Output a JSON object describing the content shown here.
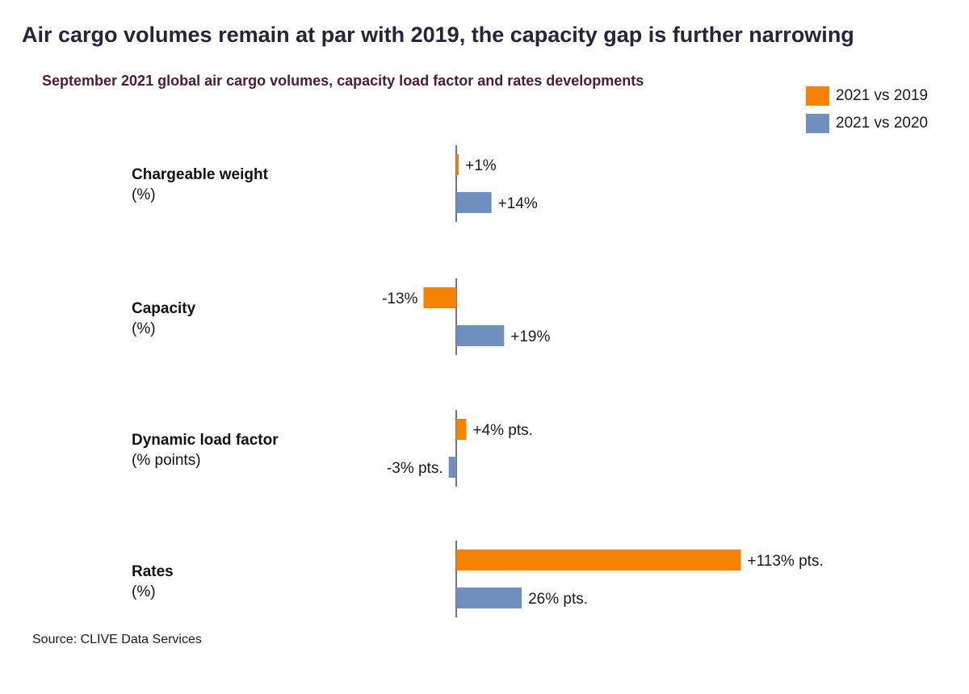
{
  "title": "Air cargo volumes remain at par with 2019, the capacity gap is further narrowing",
  "subtitle": "September 2021 global air cargo volumes, capacity load factor and rates developments",
  "legend": [
    {
      "label": "2021 vs 2019",
      "color": "#f58200"
    },
    {
      "label": "2021 vs 2020",
      "color": "#6f8fbf"
    }
  ],
  "source": "Source: CLIVE Data Services",
  "chart_data": {
    "type": "bar",
    "orientation": "horizontal",
    "title": "Air cargo volumes remain at par with 2019, the capacity gap is further narrowing",
    "subtitle": "September 2021 global air cargo volumes, capacity load factor and rates developments",
    "legend_position": "top-right",
    "grid": false,
    "categories": [
      {
        "name": "Chargeable weight",
        "unit": "(%)"
      },
      {
        "name": "Capacity",
        "unit": "(%)"
      },
      {
        "name": "Dynamic load factor",
        "unit": "(% points)"
      },
      {
        "name": "Rates",
        "unit": "(%)"
      }
    ],
    "series": [
      {
        "name": "2021 vs 2019",
        "color": "#f58200",
        "values": [
          1,
          -13,
          4,
          113
        ],
        "labels": [
          "+1%",
          "-13%",
          "+4% pts.",
          "+113% pts."
        ]
      },
      {
        "name": "2021 vs 2020",
        "color": "#6f8fbf",
        "values": [
          14,
          19,
          -3,
          26
        ],
        "labels": [
          "+14%",
          "+19%",
          "-3% pts.",
          "26% pts."
        ]
      }
    ]
  }
}
